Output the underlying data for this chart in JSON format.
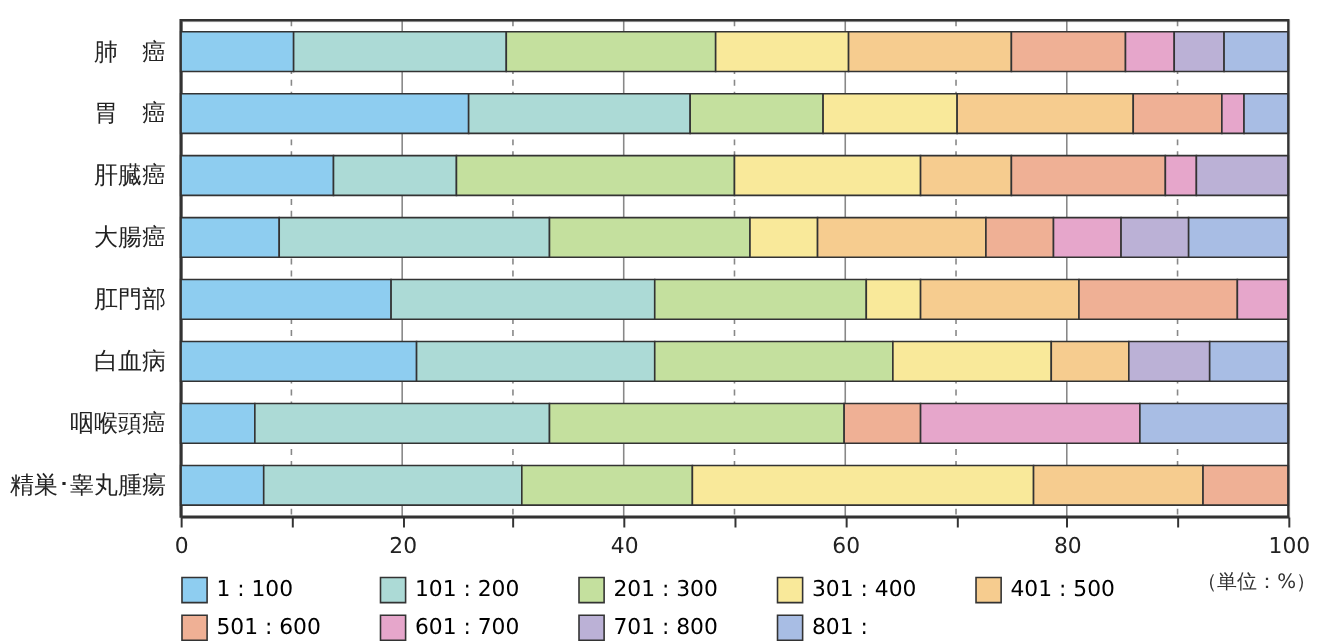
{
  "chart_data": {
    "type": "bar",
    "orientation": "horizontal",
    "stacked": true,
    "categories": [
      "肺　癌",
      "胃　癌",
      "肝臓癌",
      "大腸癌",
      "肛門部",
      "白血病",
      "咽喉頭癌",
      "精巣･睾丸腫瘍"
    ],
    "series": [
      {
        "name": "1 : 100",
        "color": "#8ecdf0",
        "values": [
          10.2,
          26.0,
          13.8,
          8.9,
          19.0,
          21.3,
          6.7,
          7.5
        ]
      },
      {
        "name": "101 : 200",
        "color": "#acdad6",
        "values": [
          19.2,
          20.0,
          11.1,
          24.4,
          23.8,
          21.5,
          26.6,
          23.3
        ]
      },
      {
        "name": "201 : 300",
        "color": "#c4e09e",
        "values": [
          18.9,
          12.0,
          25.1,
          18.1,
          19.1,
          21.5,
          26.6,
          15.4
        ]
      },
      {
        "name": "301 : 400",
        "color": "#f9e99a",
        "values": [
          12.0,
          12.1,
          16.8,
          6.1,
          4.9,
          14.3,
          null,
          30.8
        ]
      },
      {
        "name": "401 : 500",
        "color": "#f6cc8f",
        "values": [
          14.7,
          15.9,
          8.2,
          15.2,
          14.3,
          7.0,
          null,
          15.3
        ]
      },
      {
        "name": "501 : 600",
        "color": "#efb095",
        "values": [
          10.3,
          8.0,
          13.9,
          6.1,
          14.3,
          null,
          6.9,
          7.7
        ]
      },
      {
        "name": "601 : 700",
        "color": "#e6a6cb",
        "values": [
          4.4,
          2.0,
          2.8,
          6.1,
          4.6,
          null,
          19.8,
          null
        ]
      },
      {
        "name": "701 : 800",
        "color": "#bbb1d6",
        "values": [
          4.5,
          null,
          8.3,
          6.1,
          null,
          7.3,
          null,
          null
        ]
      },
      {
        "name": "801 :",
        "color": "#a8bde4",
        "values": [
          5.8,
          4.0,
          null,
          9.0,
          null,
          7.1,
          13.4,
          null
        ]
      }
    ],
    "xlim": [
      0,
      100
    ],
    "xticks": [
      0,
      {
        "value": 10,
        "label": null
      },
      20,
      {
        "value": 30,
        "label": null
      },
      40,
      {
        "value": 50,
        "label": null
      },
      60,
      {
        "value": 70,
        "label": null
      },
      80,
      {
        "value": 90,
        "label": null
      },
      100
    ],
    "grid": "x",
    "legend": "bottom",
    "annotations": [
      "（単位：%）"
    ]
  }
}
